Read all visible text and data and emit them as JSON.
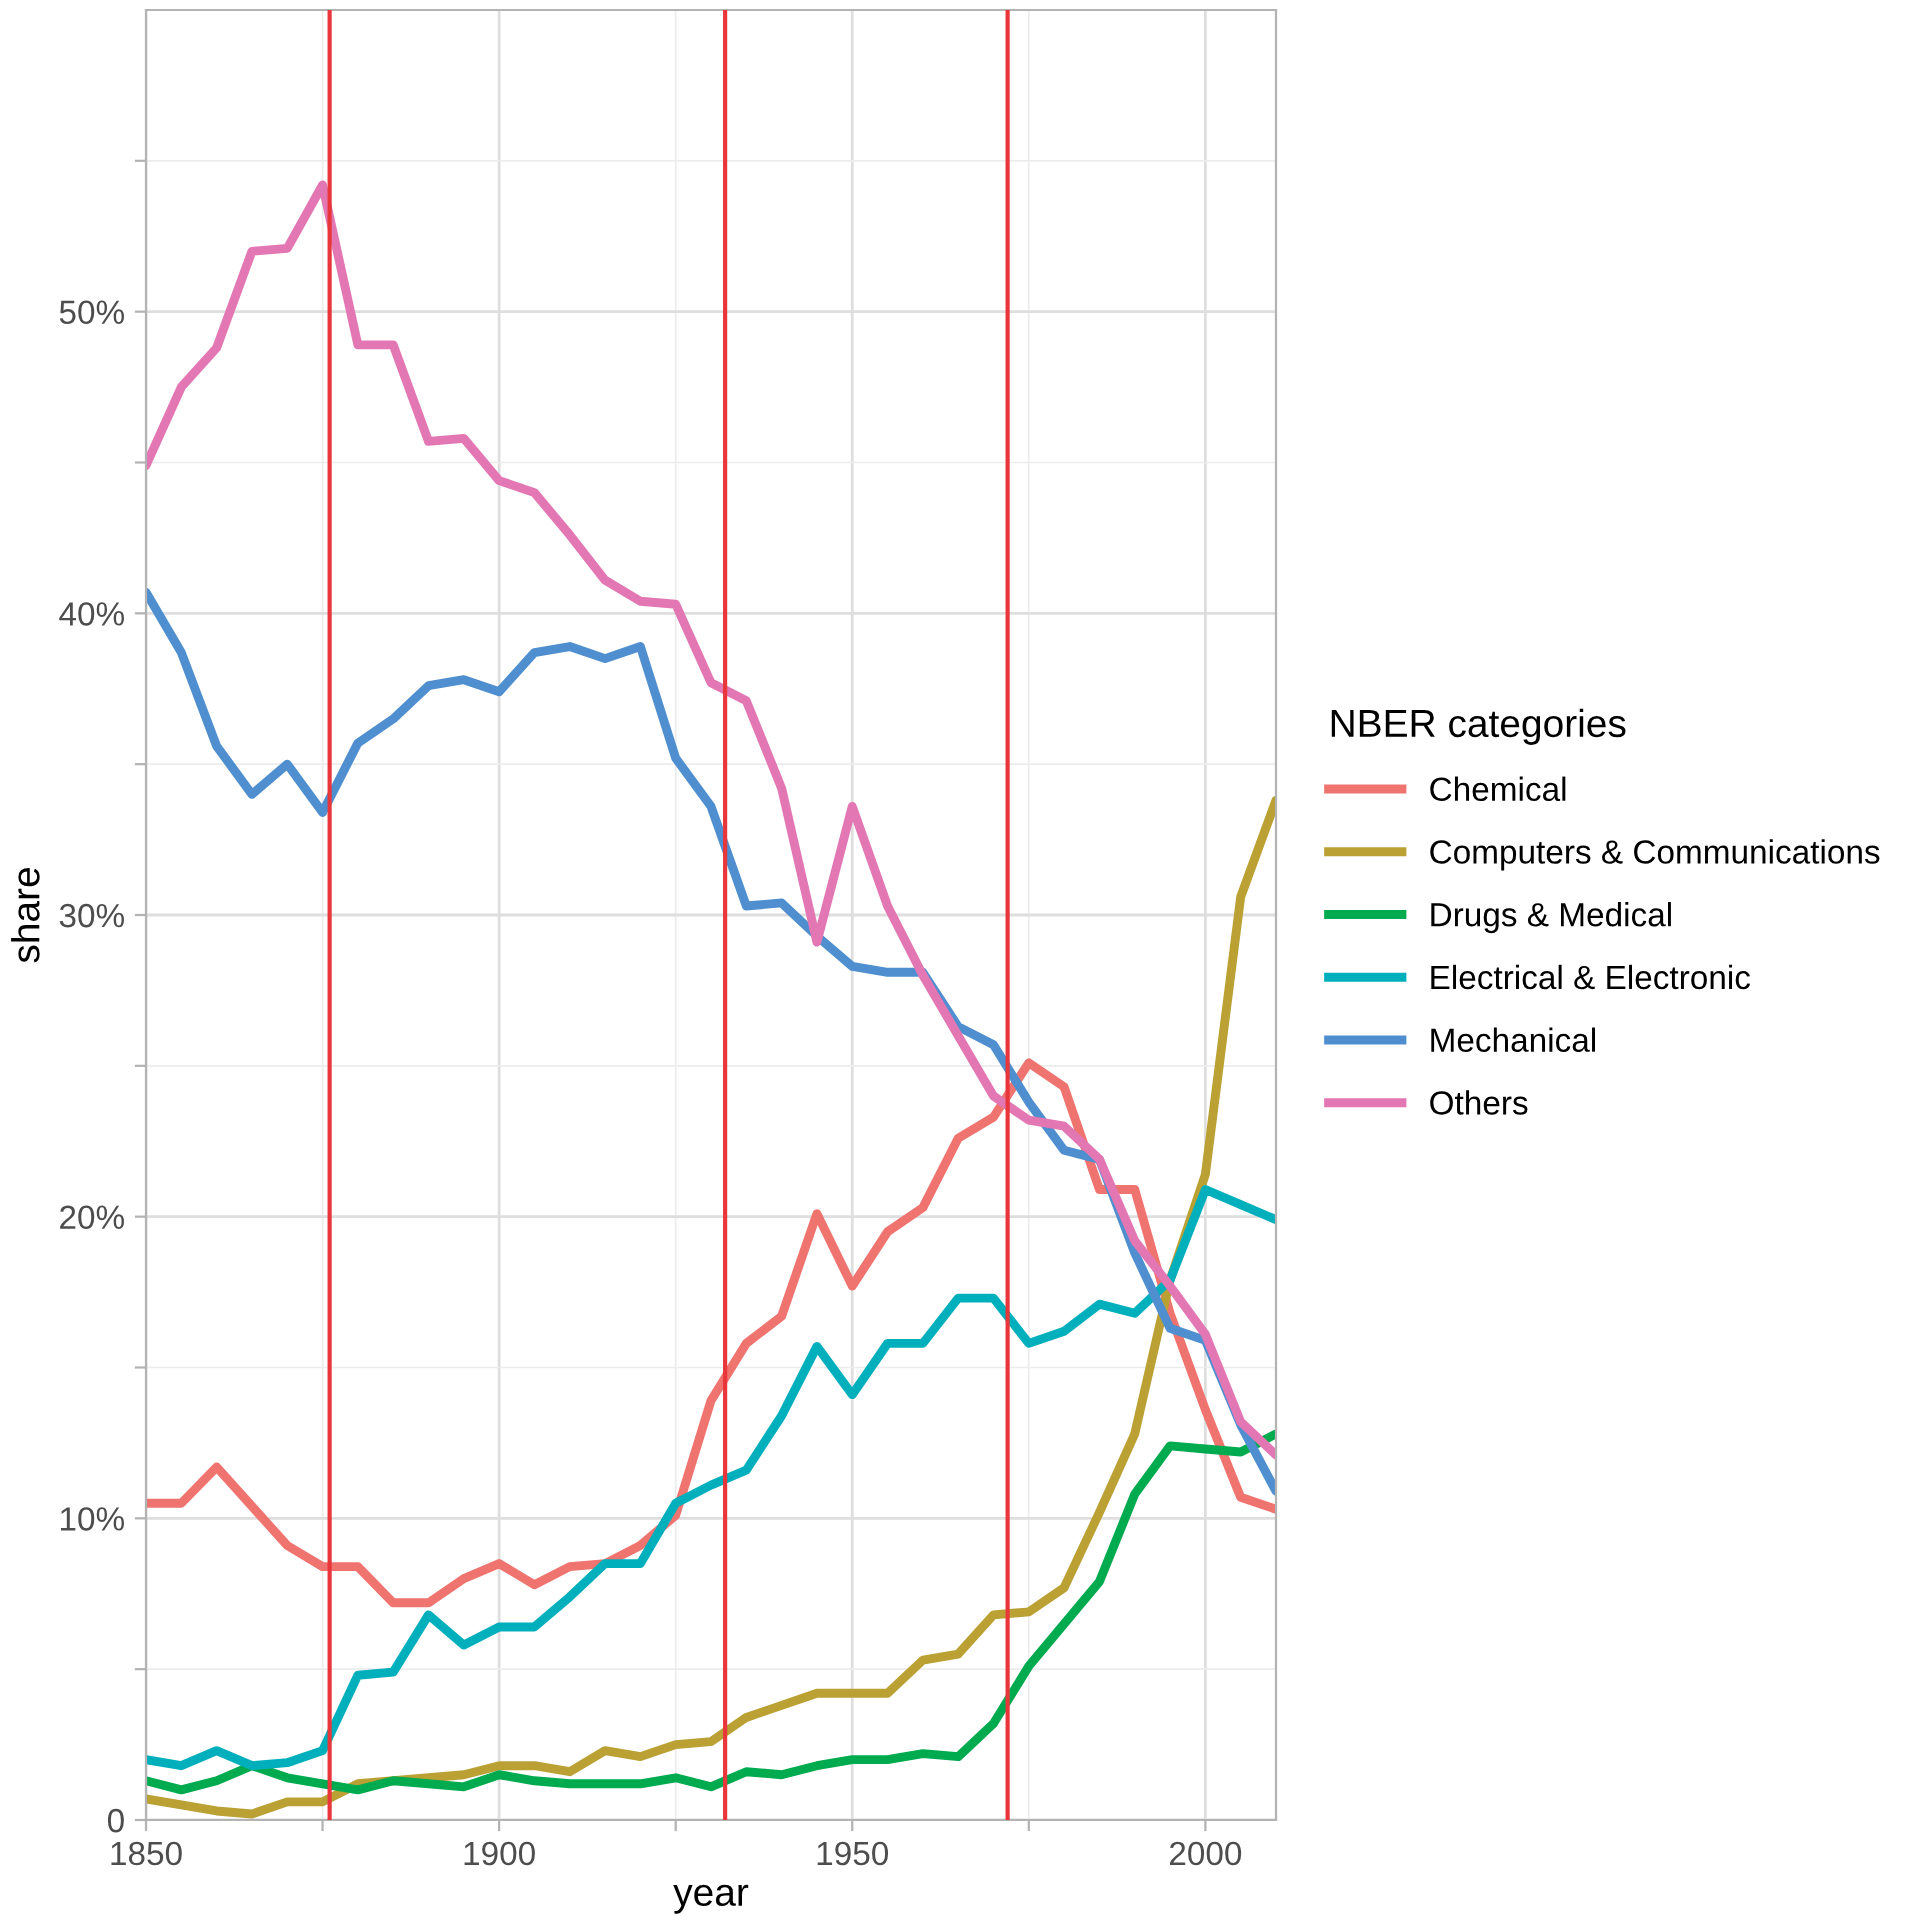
{
  "chart_data": {
    "type": "line",
    "xlabel": "year",
    "ylabel": "share",
    "legend_title": "NBER categories",
    "legend": "right",
    "grid": true,
    "line_style": "solid",
    "marker": "none",
    "x": [
      1850,
      1855,
      1860,
      1865,
      1870,
      1875,
      1880,
      1885,
      1890,
      1895,
      1900,
      1905,
      1910,
      1915,
      1920,
      1925,
      1930,
      1935,
      1940,
      1945,
      1950,
      1955,
      1960,
      1965,
      1970,
      1975,
      1980,
      1985,
      1990,
      1995,
      2000,
      2005,
      2010
    ],
    "xlim": [
      1850,
      2010
    ],
    "xticks": [
      1850,
      {
        "value": 1875,
        "label": null
      },
      1900,
      {
        "value": 1925,
        "label": null
      },
      1950,
      {
        "value": 1975,
        "label": null
      },
      2000
    ],
    "ylim": [
      0,
      60
    ],
    "yticks": [
      0,
      {
        "value": 5,
        "label": null
      },
      {
        "value": 10,
        "label": "10%"
      },
      {
        "value": 15,
        "label": null
      },
      {
        "value": 20,
        "label": "20%"
      },
      {
        "value": 25,
        "label": null
      },
      {
        "value": 30,
        "label": "30%"
      },
      {
        "value": 35,
        "label": null
      },
      {
        "value": 40,
        "label": "40%"
      },
      {
        "value": 45,
        "label": null
      },
      {
        "value": 50,
        "label": "50%"
      },
      {
        "value": 55,
        "label": null
      }
    ],
    "series": [
      {
        "name": "Chemical",
        "color": "#ef7470",
        "values": [
          10.5,
          10.5,
          11.7,
          10.4,
          9.1,
          8.4,
          8.4,
          7.2,
          7.2,
          8.0,
          8.5,
          7.8,
          8.4,
          8.5,
          9.1,
          10.1,
          13.9,
          15.8,
          16.7,
          20.1,
          17.7,
          19.5,
          20.3,
          22.6,
          23.3,
          25.1,
          24.3,
          20.9,
          20.9,
          16.8,
          13.6,
          10.7,
          10.3
        ]
      },
      {
        "name": "Computers & Communications",
        "color": "#bba034",
        "values": [
          0.7,
          0.5,
          0.3,
          0.2,
          0.6,
          0.6,
          1.2,
          1.3,
          1.4,
          1.5,
          1.8,
          1.8,
          1.6,
          2.3,
          2.1,
          2.5,
          2.6,
          3.4,
          3.8,
          4.2,
          4.2,
          4.2,
          5.3,
          5.5,
          6.8,
          6.9,
          7.7,
          10.2,
          12.8,
          17.9,
          21.4,
          30.6,
          33.8
        ]
      },
      {
        "name": "Drugs & Medical",
        "color": "#00aa4f",
        "values": [
          1.3,
          1.0,
          1.3,
          1.8,
          1.4,
          1.2,
          1.0,
          1.3,
          1.2,
          1.1,
          1.5,
          1.3,
          1.2,
          1.2,
          1.2,
          1.4,
          1.1,
          1.6,
          1.5,
          1.8,
          2.0,
          2.0,
          2.2,
          2.1,
          3.2,
          5.1,
          6.5,
          7.9,
          10.8,
          12.4,
          12.3,
          12.2,
          12.8
        ]
      },
      {
        "name": "Electrical & Electronic",
        "color": "#00afbc",
        "values": [
          2.0,
          1.8,
          2.3,
          1.8,
          1.9,
          2.3,
          4.8,
          4.9,
          6.8,
          5.8,
          6.4,
          6.4,
          7.4,
          8.5,
          8.5,
          10.5,
          11.1,
          11.6,
          13.4,
          15.7,
          14.1,
          15.8,
          15.8,
          17.3,
          17.3,
          15.8,
          16.2,
          17.1,
          16.8,
          17.9,
          20.9,
          20.4,
          19.9
        ]
      },
      {
        "name": "Mechanical",
        "color": "#4f8fd0",
        "values": [
          40.7,
          38.7,
          35.6,
          34.0,
          35.0,
          33.4,
          35.7,
          36.5,
          37.6,
          37.8,
          37.4,
          38.7,
          38.9,
          38.5,
          38.9,
          35.2,
          33.6,
          30.3,
          30.4,
          29.3,
          28.3,
          28.1,
          28.1,
          26.3,
          25.7,
          23.8,
          22.2,
          21.9,
          18.8,
          16.3,
          15.9,
          13.1,
          10.9
        ]
      },
      {
        "name": "Others",
        "color": "#e377b4",
        "values": [
          44.9,
          47.5,
          48.8,
          52.0,
          52.1,
          54.2,
          48.9,
          48.9,
          45.7,
          45.8,
          44.4,
          44.0,
          42.6,
          41.1,
          40.4,
          40.3,
          37.7,
          37.1,
          34.2,
          29.1,
          33.6,
          30.3,
          28.0,
          26.0,
          24.0,
          23.2,
          23.0,
          21.9,
          19.2,
          17.7,
          16.1,
          13.2,
          12.1
        ]
      }
    ],
    "ref_lines": [
      {
        "axis": "x",
        "value": 1876,
        "color": "#e8363a"
      },
      {
        "axis": "x",
        "value": 1932,
        "color": "#e8363a"
      },
      {
        "axis": "x",
        "value": 1972,
        "color": "#e8363a"
      }
    ]
  }
}
